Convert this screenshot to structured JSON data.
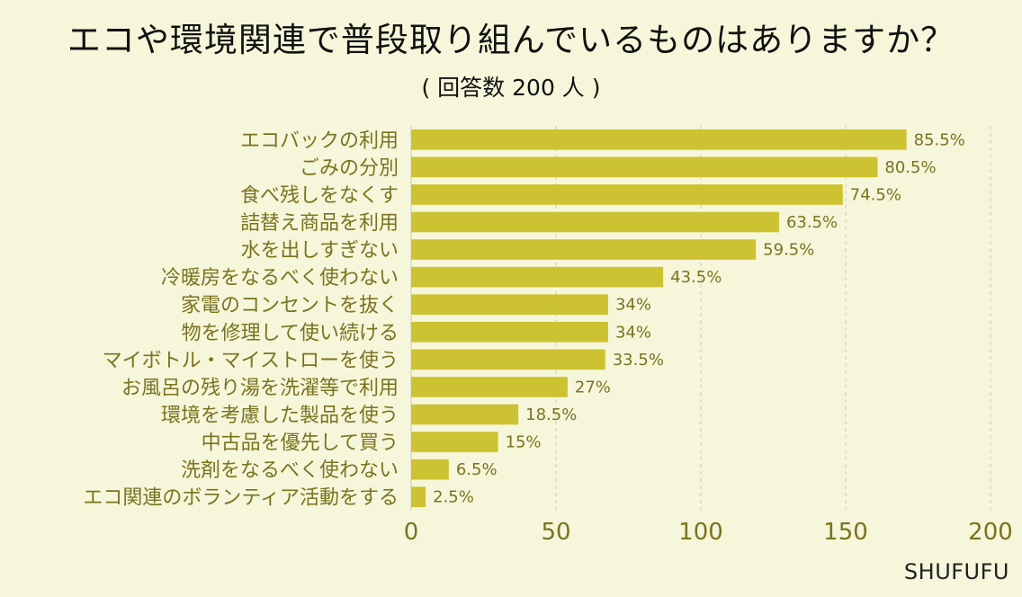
{
  "title": "エコや環境関連で普段取り組んでいるものはありますか？",
  "subtitle": "( 回答数 200 人 )",
  "brand": "SHUFUFU",
  "colors": {
    "bar": "#cdc231",
    "background": "#f6f6da",
    "label": "#7a7320"
  },
  "chart_data": {
    "type": "bar",
    "orientation": "horizontal",
    "categories": [
      "エコバックの利用",
      "ごみの分別",
      "食べ残しをなくす",
      "詰替え商品を利用",
      "水を出しすぎない",
      "冷暖房をなるべく使わない",
      "家電のコンセントを抜く",
      "物を修理して使い続ける",
      "マイボトル・マイストローを使う",
      "お風呂の残り湯を洗濯等で利用",
      "環境を考慮した製品を使う",
      "中古品を優先して買う",
      "洗剤をなるべく使わない",
      "エコ関連のボランティア活動をする"
    ],
    "values": [
      171,
      161,
      149,
      127,
      119,
      87,
      68,
      68,
      67,
      54,
      37,
      30,
      13,
      5
    ],
    "data_labels": [
      "85.5%",
      "80.5%",
      "74.5%",
      "63.5%",
      "59.5%",
      "43.5%",
      "34%",
      "34%",
      "33.5%",
      "27%",
      "18.5%",
      "15%",
      "6.5%",
      "2.5%"
    ],
    "xlim": [
      0,
      200
    ],
    "xticks": [
      "0",
      "50",
      "100",
      "150",
      "200"
    ],
    "grid": true
  }
}
